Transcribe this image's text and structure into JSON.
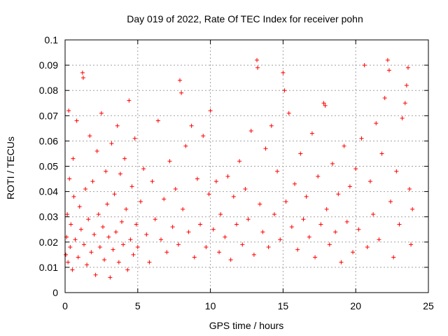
{
  "chart_data": {
    "type": "scatter",
    "title": "Day 019 of 2022, Rate Of TEC Index for receiver pohn",
    "xlabel": "GPS time / hours",
    "ylabel": "ROTI / TECUs",
    "xlim": [
      0,
      25
    ],
    "ylim": [
      0,
      0.1
    ],
    "x_ticks": [
      0,
      5,
      10,
      15,
      20,
      25
    ],
    "x_tick_labels": [
      "0",
      "5",
      "10",
      "15",
      "20",
      "25"
    ],
    "y_ticks": [
      0,
      0.01,
      0.02,
      0.03,
      0.04,
      0.05,
      0.06,
      0.07,
      0.08,
      0.09,
      0.1
    ],
    "y_tick_labels": [
      "0",
      "0.01",
      "0.02",
      "0.03",
      "0.04",
      "0.05",
      "0.06",
      "0.07",
      "0.08",
      "0.09",
      "0.1"
    ],
    "grid": true,
    "marker": "+",
    "series": [
      {
        "name": "ROTI",
        "color": "#ff0000",
        "points": [
          [
            0.05,
            0.015
          ],
          [
            0.1,
            0.022
          ],
          [
            0.15,
            0.031
          ],
          [
            0.2,
            0.012
          ],
          [
            0.25,
            0.072
          ],
          [
            0.3,
            0.045
          ],
          [
            0.35,
            0.018
          ],
          [
            0.4,
            0.027
          ],
          [
            0.5,
            0.009
          ],
          [
            0.55,
            0.053
          ],
          [
            0.6,
            0.038
          ],
          [
            0.7,
            0.021
          ],
          [
            0.8,
            0.068
          ],
          [
            0.9,
            0.014
          ],
          [
            1.0,
            0.034
          ],
          [
            1.1,
            0.025
          ],
          [
            1.2,
            0.087
          ],
          [
            1.25,
            0.085
          ],
          [
            1.3,
            0.019
          ],
          [
            1.4,
            0.041
          ],
          [
            1.5,
            0.011
          ],
          [
            1.6,
            0.029
          ],
          [
            1.7,
            0.062
          ],
          [
            1.8,
            0.016
          ],
          [
            1.9,
            0.044
          ],
          [
            2.0,
            0.023
          ],
          [
            2.1,
            0.007
          ],
          [
            2.2,
            0.056
          ],
          [
            2.3,
            0.031
          ],
          [
            2.4,
            0.018
          ],
          [
            2.5,
            0.071
          ],
          [
            2.6,
            0.026
          ],
          [
            2.7,
            0.013
          ],
          [
            2.8,
            0.048
          ],
          [
            2.9,
            0.035
          ],
          [
            3.0,
            0.022
          ],
          [
            3.1,
            0.006
          ],
          [
            3.2,
            0.059
          ],
          [
            3.3,
            0.017
          ],
          [
            3.4,
            0.039
          ],
          [
            3.5,
            0.024
          ],
          [
            3.6,
            0.066
          ],
          [
            3.7,
            0.012
          ],
          [
            3.8,
            0.047
          ],
          [
            3.9,
            0.028
          ],
          [
            4.0,
            0.019
          ],
          [
            4.1,
            0.053
          ],
          [
            4.2,
            0.033
          ],
          [
            4.3,
            0.009
          ],
          [
            4.4,
            0.076
          ],
          [
            4.5,
            0.021
          ],
          [
            4.6,
            0.042
          ],
          [
            4.7,
            0.015
          ],
          [
            4.8,
            0.061
          ],
          [
            4.9,
            0.027
          ],
          [
            5.0,
            0.018
          ],
          [
            5.2,
            0.036
          ],
          [
            5.4,
            0.049
          ],
          [
            5.6,
            0.023
          ],
          [
            5.8,
            0.012
          ],
          [
            6.0,
            0.044
          ],
          [
            6.2,
            0.029
          ],
          [
            6.4,
            0.068
          ],
          [
            6.6,
            0.021
          ],
          [
            6.8,
            0.037
          ],
          [
            7.0,
            0.016
          ],
          [
            7.2,
            0.052
          ],
          [
            7.4,
            0.026
          ],
          [
            7.6,
            0.041
          ],
          [
            7.8,
            0.019
          ],
          [
            7.9,
            0.084
          ],
          [
            8.0,
            0.079
          ],
          [
            8.1,
            0.033
          ],
          [
            8.3,
            0.058
          ],
          [
            8.5,
            0.024
          ],
          [
            8.7,
            0.066
          ],
          [
            8.9,
            0.014
          ],
          [
            9.1,
            0.045
          ],
          [
            9.3,
            0.027
          ],
          [
            9.5,
            0.062
          ],
          [
            9.7,
            0.018
          ],
          [
            9.9,
            0.039
          ],
          [
            10.0,
            0.072
          ],
          [
            10.2,
            0.025
          ],
          [
            10.4,
            0.044
          ],
          [
            10.6,
            0.016
          ],
          [
            10.7,
            0.031
          ],
          [
            11.0,
            0.022
          ],
          [
            11.2,
            0.046
          ],
          [
            11.4,
            0.013
          ],
          [
            11.6,
            0.038
          ],
          [
            11.8,
            0.027
          ],
          [
            12.0,
            0.052
          ],
          [
            12.2,
            0.019
          ],
          [
            12.4,
            0.041
          ],
          [
            12.6,
            0.029
          ],
          [
            12.8,
            0.064
          ],
          [
            13.0,
            0.015
          ],
          [
            13.2,
            0.092
          ],
          [
            13.25,
            0.089
          ],
          [
            13.4,
            0.035
          ],
          [
            13.6,
            0.024
          ],
          [
            13.8,
            0.057
          ],
          [
            14.0,
            0.018
          ],
          [
            14.2,
            0.066
          ],
          [
            14.4,
            0.031
          ],
          [
            14.6,
            0.048
          ],
          [
            14.8,
            0.021
          ],
          [
            15.0,
            0.087
          ],
          [
            15.1,
            0.08
          ],
          [
            15.2,
            0.036
          ],
          [
            15.4,
            0.071
          ],
          [
            15.6,
            0.026
          ],
          [
            15.8,
            0.043
          ],
          [
            16.0,
            0.017
          ],
          [
            16.2,
            0.055
          ],
          [
            16.4,
            0.029
          ],
          [
            16.6,
            0.038
          ],
          [
            16.8,
            0.022
          ],
          [
            17.0,
            0.063
          ],
          [
            17.2,
            0.014
          ],
          [
            17.4,
            0.046
          ],
          [
            17.6,
            0.027
          ],
          [
            17.8,
            0.075
          ],
          [
            17.9,
            0.074
          ],
          [
            18.0,
            0.033
          ],
          [
            18.2,
            0.019
          ],
          [
            18.4,
            0.051
          ],
          [
            18.6,
            0.024
          ],
          [
            18.8,
            0.039
          ],
          [
            19.0,
            0.012
          ],
          [
            19.2,
            0.058
          ],
          [
            19.4,
            0.028
          ],
          [
            19.6,
            0.042
          ],
          [
            19.8,
            0.016
          ],
          [
            20.0,
            0.049
          ],
          [
            20.2,
            0.025
          ],
          [
            20.4,
            0.061
          ],
          [
            20.6,
            0.09
          ],
          [
            20.8,
            0.018
          ],
          [
            21.0,
            0.044
          ],
          [
            21.2,
            0.031
          ],
          [
            21.4,
            0.067
          ],
          [
            21.6,
            0.021
          ],
          [
            21.8,
            0.055
          ],
          [
            22.0,
            0.077
          ],
          [
            22.2,
            0.092
          ],
          [
            22.3,
            0.088
          ],
          [
            22.4,
            0.036
          ],
          [
            22.6,
            0.014
          ],
          [
            22.8,
            0.048
          ],
          [
            23.0,
            0.027
          ],
          [
            23.2,
            0.069
          ],
          [
            23.4,
            0.075
          ],
          [
            23.5,
            0.082
          ],
          [
            23.6,
            0.089
          ],
          [
            23.7,
            0.041
          ],
          [
            23.8,
            0.019
          ],
          [
            23.9,
            0.033
          ]
        ]
      }
    ]
  }
}
